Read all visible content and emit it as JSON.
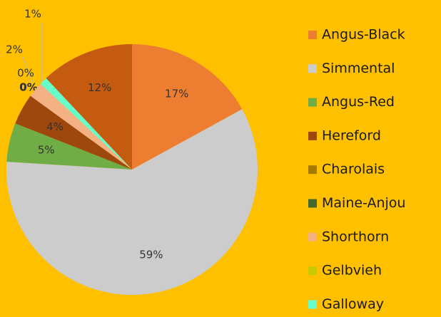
{
  "chart_data": {
    "type": "pie",
    "categories": [
      "Angus-Black",
      "Simmental",
      "Angus-Red",
      "Hereford",
      "Charolais",
      "Maine-Anjou",
      "Shorthorn",
      "Gelbvieh",
      "Galloway",
      null
    ],
    "values": [
      17,
      59,
      5,
      4,
      0,
      0,
      2,
      0,
      1,
      12
    ],
    "value_labels": [
      "17%",
      "59%",
      "5%",
      "4%",
      "0%",
      "0%",
      "2%",
      "0%",
      "1%",
      "12%"
    ],
    "colors": [
      "#ed7d31",
      "#cccccc",
      "#70ad47",
      "#9e480e",
      "#a47b00",
      "#43682b",
      "#f4b183",
      "#c9c900",
      "#66ffcc",
      "#c55a11"
    ]
  }
}
